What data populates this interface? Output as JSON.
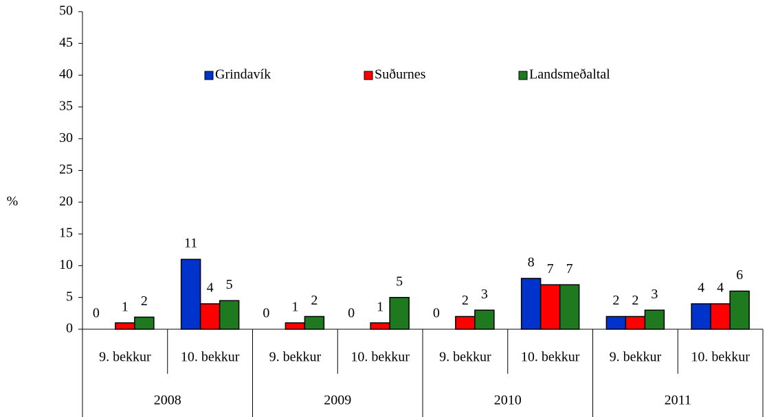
{
  "chart_data": {
    "type": "bar",
    "y_label": "%",
    "categories": [
      "9. bekkur",
      "10. bekkur",
      "9. bekkur",
      "10. bekkur",
      "9. bekkur",
      "10. bekkur",
      "9. bekkur",
      "10. bekkur"
    ],
    "category_groups": [
      "2008",
      "2009",
      "2010",
      "2011"
    ],
    "series": [
      {
        "name": "Grindavík",
        "color": "#0033cc",
        "values": [
          0,
          11,
          0,
          0,
          0,
          8,
          2,
          4
        ]
      },
      {
        "name": "Suðurnes",
        "color": "#ff0000",
        "values": [
          1,
          4,
          1,
          1,
          2,
          7,
          2,
          4
        ]
      },
      {
        "name": "Landsmeðaltal",
        "color": "#1f7a1f",
        "values": [
          1.9,
          4.5,
          2,
          5,
          3,
          7,
          3,
          6
        ],
        "value_labels": [
          "2",
          "5",
          "2",
          "5",
          "3",
          "7",
          "3",
          "6"
        ]
      }
    ],
    "ylim": [
      0,
      50
    ],
    "yticks": [
      0,
      5,
      10,
      15,
      20,
      25,
      30,
      35,
      40,
      45,
      50
    ],
    "legend": "top"
  }
}
